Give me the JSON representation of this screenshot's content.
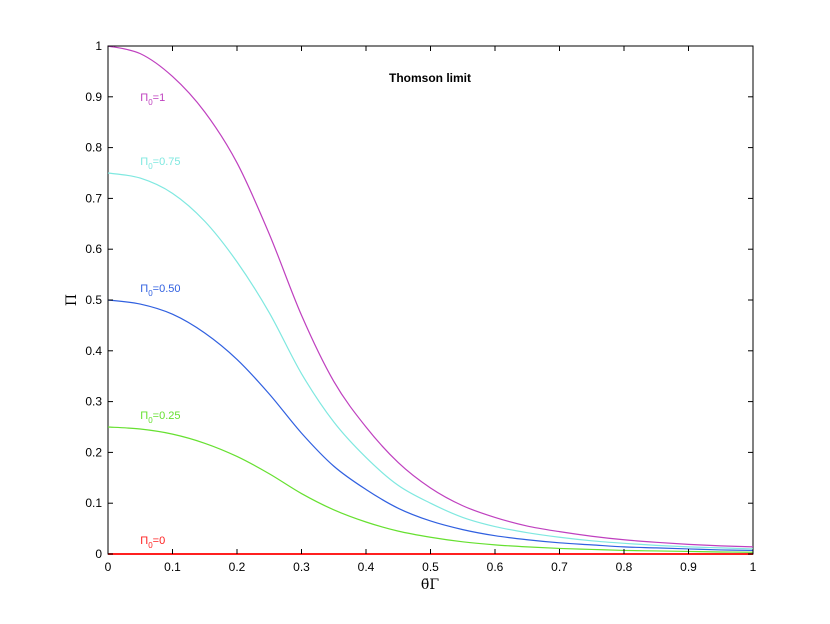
{
  "chart_data": {
    "type": "line",
    "title": "Thomson limit",
    "xlabel": "θ̄Γ",
    "ylabel": "Π",
    "xlim": [
      0,
      1
    ],
    "ylim": [
      0,
      1
    ],
    "xticks": [
      "0",
      "0.1",
      "0.2",
      "0.3",
      "0.4",
      "0.5",
      "0.6",
      "0.7",
      "0.8",
      "0.9",
      "1"
    ],
    "yticks": [
      "0",
      "0.1",
      "0.2",
      "0.3",
      "0.4",
      "0.5",
      "0.6",
      "0.7",
      "0.8",
      "0.9",
      "1"
    ],
    "grid": false,
    "x": [
      0,
      0.05,
      0.1,
      0.15,
      0.2,
      0.25,
      0.3,
      0.35,
      0.4,
      0.45,
      0.5,
      0.55,
      0.6,
      0.65,
      0.7,
      0.75,
      0.8,
      0.85,
      0.9,
      0.95,
      1.0
    ],
    "series": [
      {
        "annotation": {
          "symbol": "Π",
          "sub": "0",
          "text": "=1"
        },
        "color": "#bf40bf",
        "values": [
          1.0,
          0.985,
          0.94,
          0.87,
          0.77,
          0.63,
          0.47,
          0.34,
          0.25,
          0.18,
          0.13,
          0.095,
          0.072,
          0.055,
          0.044,
          0.035,
          0.028,
          0.023,
          0.019,
          0.016,
          0.014
        ]
      },
      {
        "annotation": {
          "symbol": "Π",
          "sub": "0",
          "text": "=0.75"
        },
        "color": "#7fe8e0",
        "values": [
          0.75,
          0.74,
          0.71,
          0.655,
          0.575,
          0.475,
          0.355,
          0.26,
          0.19,
          0.135,
          0.1,
          0.072,
          0.054,
          0.042,
          0.033,
          0.026,
          0.021,
          0.017,
          0.014,
          0.012,
          0.01
        ]
      },
      {
        "annotation": {
          "symbol": "Π",
          "sub": "0",
          "text": "=0.50"
        },
        "color": "#3060e0",
        "values": [
          0.5,
          0.492,
          0.472,
          0.435,
          0.383,
          0.315,
          0.238,
          0.173,
          0.127,
          0.09,
          0.065,
          0.048,
          0.036,
          0.028,
          0.022,
          0.018,
          0.014,
          0.012,
          0.01,
          0.008,
          0.007
        ]
      },
      {
        "annotation": {
          "symbol": "Π",
          "sub": "0",
          "text": "=0.25"
        },
        "color": "#66e030",
        "values": [
          0.25,
          0.246,
          0.236,
          0.218,
          0.192,
          0.158,
          0.119,
          0.087,
          0.063,
          0.045,
          0.033,
          0.024,
          0.018,
          0.014,
          0.011,
          0.009,
          0.007,
          0.006,
          0.005,
          0.004,
          0.0035
        ]
      },
      {
        "annotation": {
          "symbol": "Π",
          "sub": "0",
          "text": "=0"
        },
        "color": "#ff2020",
        "values": [
          0,
          0,
          0,
          0,
          0,
          0,
          0,
          0,
          0,
          0,
          0,
          0,
          0,
          0,
          0,
          0,
          0,
          0,
          0,
          0,
          0
        ]
      }
    ]
  }
}
